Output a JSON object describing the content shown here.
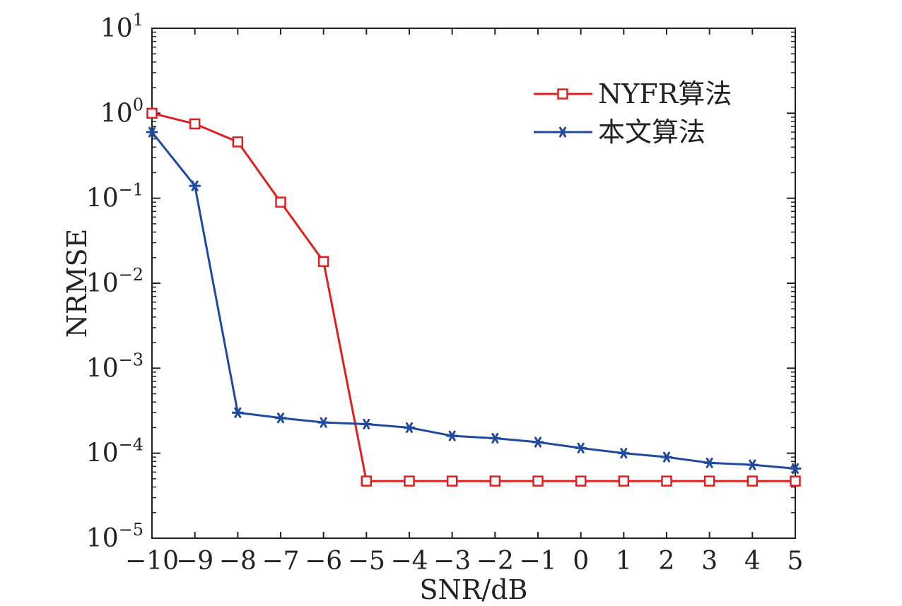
{
  "chart_data": {
    "type": "line",
    "title": "",
    "xlabel": "SNR/dB",
    "ylabel": "NRMSE",
    "y_scale": "log",
    "xlim": [
      -10,
      5
    ],
    "ylim": [
      1e-05,
      10
    ],
    "x_ticks": [
      -10,
      -9,
      -8,
      -7,
      -6,
      -5,
      -4,
      -3,
      -2,
      -1,
      0,
      1,
      2,
      3,
      4,
      5
    ],
    "x_tick_labels": [
      "−10",
      "−9",
      "−8",
      "−7",
      "−6",
      "−5",
      "−4",
      "−3",
      "−2",
      "−1",
      "0",
      "1",
      "2",
      "3",
      "4",
      "5"
    ],
    "y_ticks": [
      {
        "value": 10,
        "base": "10",
        "exp": "1"
      },
      {
        "value": 1,
        "base": "10",
        "exp": "0"
      },
      {
        "value": 0.1,
        "base": "10",
        "exp": "−1"
      },
      {
        "value": 0.01,
        "base": "10",
        "exp": "−2"
      },
      {
        "value": 0.001,
        "base": "10",
        "exp": "−3"
      },
      {
        "value": 0.0001,
        "base": "10",
        "exp": "−4"
      },
      {
        "value": 1e-05,
        "base": "10",
        "exp": "−5"
      }
    ],
    "grid": false,
    "legend_position": "top-right",
    "x": [
      -10,
      -9,
      -8,
      -7,
      -6,
      -5,
      -4,
      -3,
      -2,
      -1,
      0,
      1,
      2,
      3,
      4,
      5
    ],
    "series": [
      {
        "name": "NYFR算法",
        "color": "#e02020",
        "marker": "square",
        "values": [
          1.0,
          0.75,
          0.46,
          0.09,
          0.018,
          4.7e-05,
          4.7e-05,
          4.7e-05,
          4.7e-05,
          4.7e-05,
          4.7e-05,
          4.7e-05,
          4.7e-05,
          4.7e-05,
          4.7e-05,
          4.7e-05
        ]
      },
      {
        "name": "本文算法",
        "color": "#1f4aa0",
        "marker": "asterisk",
        "values": [
          0.6,
          0.14,
          0.0003,
          0.00026,
          0.00023,
          0.00022,
          0.0002,
          0.00016,
          0.00015,
          0.000135,
          0.000115,
          0.0001,
          9e-05,
          7.7e-05,
          7.3e-05,
          6.6e-05
        ]
      }
    ]
  }
}
